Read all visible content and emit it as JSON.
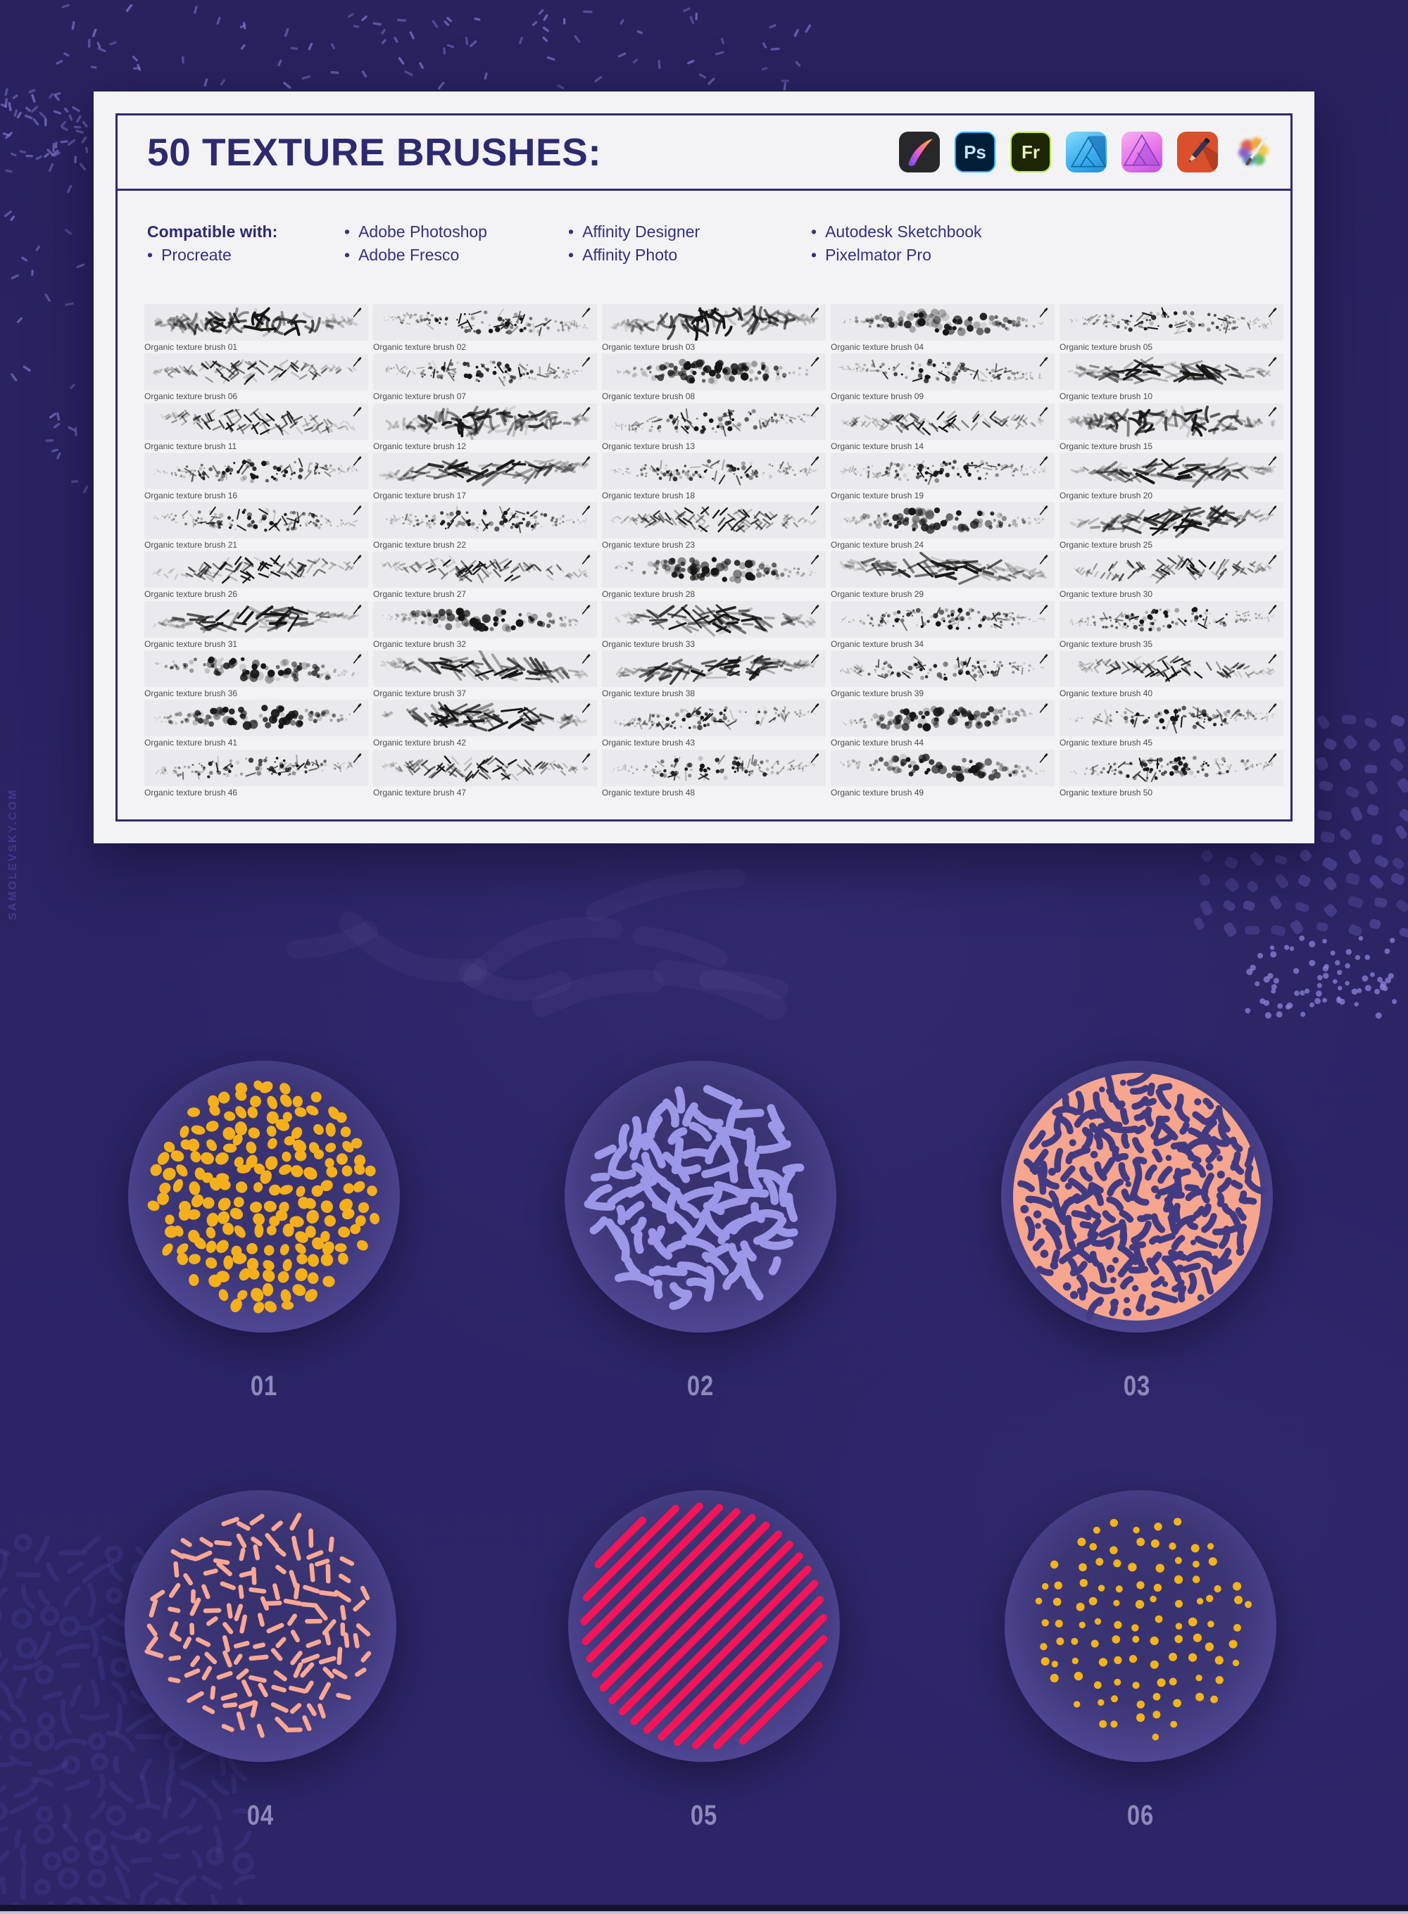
{
  "watermark": "SAMOLEVSKY.COM",
  "colors": {
    "page_bg": "#2a2364",
    "accent_navy": "#2e2a6e",
    "card_bg": "#f3f3f6",
    "cell_bg": "#eaeaee",
    "ink": "#161616",
    "number_label": "#8d89bb",
    "circle_inner": "#38316e",
    "circle_rim": "#544b9c",
    "maze_gap_purple": "#423b82",
    "decor_sprinkle": "#7b74c6",
    "decor_blob": "#5b53a4",
    "decor_dot": "#8a83d4",
    "decor_maze": "#4d4598",
    "decor_ghost": "#a49cdf"
  },
  "card": {
    "title": "50 TEXTURE BRUSHES:",
    "app_icons": [
      "Procreate",
      "Adobe Photoshop",
      "Adobe Fresco",
      "Affinity Designer",
      "Affinity Photo",
      "Autodesk Sketchbook",
      "Pixelmator Pro"
    ],
    "photoshop_glyph": "Ps",
    "fresco_glyph": "Fr",
    "compatible": {
      "heading": "Compatible with:",
      "columns": [
        [
          "Procreate"
        ],
        [
          "Adobe Photoshop",
          "Adobe Fresco"
        ],
        [
          "Affinity Designer",
          "Affinity Photo"
        ],
        [
          "Autodesk Sketchbook",
          "Pixelmator Pro"
        ]
      ]
    }
  },
  "brushes": {
    "labels": [
      "Organic texture brush 01",
      "Organic texture brush 02",
      "Organic texture brush 03",
      "Organic texture brush 04",
      "Organic texture brush 05",
      "Organic texture brush 06",
      "Organic texture brush 07",
      "Organic texture brush 08",
      "Organic texture brush 09",
      "Organic texture brush 10",
      "Organic texture brush 11",
      "Organic texture brush 12",
      "Organic texture brush 13",
      "Organic texture brush 14",
      "Organic texture brush 15",
      "Organic texture brush 16",
      "Organic texture brush 17",
      "Organic texture brush 18",
      "Organic texture brush 19",
      "Organic texture brush 20",
      "Organic texture brush 21",
      "Organic texture brush 22",
      "Organic texture brush 23",
      "Organic texture brush 24",
      "Organic texture brush 25",
      "Organic texture brush 26",
      "Organic texture brush 27",
      "Organic texture brush 28",
      "Organic texture brush 29",
      "Organic texture brush 30",
      "Organic texture brush 31",
      "Organic texture brush 32",
      "Organic texture brush 33",
      "Organic texture brush 34",
      "Organic texture brush 35",
      "Organic texture brush 36",
      "Organic texture brush 37",
      "Organic texture brush 38",
      "Organic texture brush 39",
      "Organic texture brush 40",
      "Organic texture brush 41",
      "Organic texture brush 42",
      "Organic texture brush 43",
      "Organic texture brush 44",
      "Organic texture brush 45",
      "Organic texture brush 46",
      "Organic texture brush 47",
      "Organic texture brush 48",
      "Organic texture brush 49",
      "Organic texture brush 50"
    ]
  },
  "samples": {
    "items": [
      {
        "number": "01",
        "pattern": "blobs",
        "color": "#f4b01c"
      },
      {
        "number": "02",
        "pattern": "worms",
        "color": "#9d97e8"
      },
      {
        "number": "03",
        "pattern": "maze-inverse",
        "color": "#f6a58f"
      },
      {
        "number": "04",
        "pattern": "sprinkles",
        "color": "#f8a894"
      },
      {
        "number": "05",
        "pattern": "diagonal-lines",
        "color": "#f31558"
      },
      {
        "number": "06",
        "pattern": "dots",
        "color": "#f2b31b"
      }
    ]
  }
}
